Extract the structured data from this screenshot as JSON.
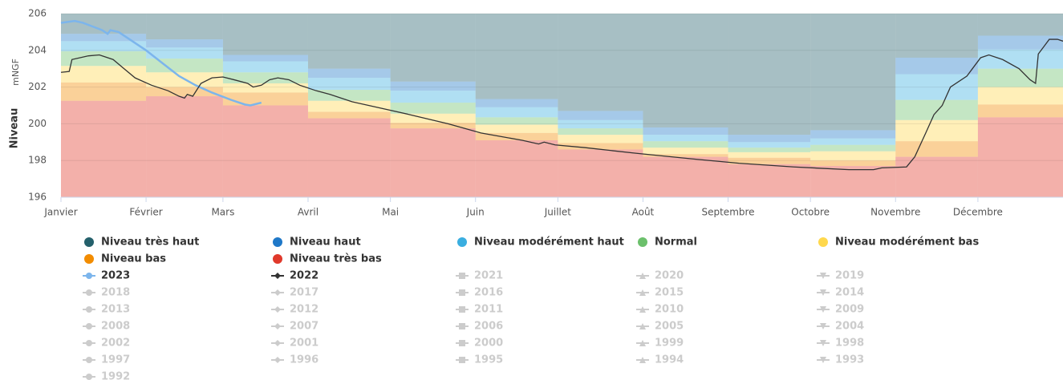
{
  "chart_data": {
    "type": "line",
    "y_label": "Niveau",
    "y_unit": "mNGF",
    "xlim": [
      0,
      365
    ],
    "xticks": [
      {
        "value": 0,
        "label": "Janvier"
      },
      {
        "value": 31,
        "label": "Février"
      },
      {
        "value": 59,
        "label": "Mars"
      },
      {
        "value": 90,
        "label": "Avril"
      },
      {
        "value": 120,
        "label": "Mai"
      },
      {
        "value": 151,
        "label": "Juin"
      },
      {
        "value": 181,
        "label": "Juillet"
      },
      {
        "value": 212,
        "label": "Août"
      },
      {
        "value": 243,
        "label": "Septembre"
      },
      {
        "value": 273,
        "label": "Octobre"
      },
      {
        "value": 304,
        "label": "Novembre"
      },
      {
        "value": 334,
        "label": "Décembre"
      }
    ],
    "ylim": [
      196,
      206
    ],
    "yticks": [
      196,
      198,
      200,
      202,
      204,
      206
    ],
    "grid": true,
    "bands": [
      {
        "name": "Niveau très haut",
        "color": "#24606b",
        "values": [
          204.9,
          204.6,
          203.75,
          203.0,
          202.3,
          201.35,
          200.7,
          199.8,
          199.4,
          199.65,
          203.6,
          204.8
        ]
      },
      {
        "name": "Niveau haut",
        "color": "#1f78c8",
        "values": [
          204.5,
          204.15,
          203.4,
          202.5,
          201.8,
          200.9,
          200.2,
          199.4,
          199.0,
          199.2,
          202.7,
          204.05
        ]
      },
      {
        "name": "Niveau modérément haut",
        "color": "#3aaee0",
        "values": [
          203.95,
          203.55,
          202.8,
          201.85,
          201.15,
          200.35,
          199.75,
          199.05,
          198.7,
          198.85,
          201.3,
          203.0
        ]
      },
      {
        "name": "Normal",
        "color": "#6cc06c",
        "values": [
          203.15,
          202.8,
          202.2,
          201.25,
          200.55,
          199.95,
          199.4,
          198.7,
          198.45,
          198.5,
          200.2,
          202.0
        ]
      },
      {
        "name": "Niveau modérément bas",
        "color": "#ffd84d",
        "values": [
          202.25,
          202.0,
          201.7,
          200.65,
          200.05,
          199.5,
          198.95,
          198.35,
          198.15,
          198.0,
          199.05,
          201.05
        ]
      },
      {
        "name": "Niveau bas",
        "color": "#f28c00",
        "values": [
          201.25,
          201.5,
          201.0,
          200.3,
          199.75,
          199.1,
          198.6,
          198.2,
          197.8,
          197.7,
          198.2,
          200.35
        ]
      },
      {
        "name": "Niveau très bas",
        "color": "#e0392b",
        "values": [
          196,
          196,
          196,
          196,
          196,
          196,
          196,
          196,
          196,
          196,
          196,
          196
        ]
      }
    ],
    "series": [
      {
        "name": "2023",
        "color": "#7cb5ec",
        "x": [
          0,
          5,
          8,
          15,
          17,
          18,
          21,
          25,
          31,
          37,
          43,
          49,
          55,
          62,
          67,
          69,
          73
        ],
        "values": [
          205.5,
          205.6,
          205.5,
          205.1,
          204.9,
          205.1,
          205.0,
          204.6,
          204.0,
          203.3,
          202.6,
          202.1,
          201.7,
          201.3,
          201.05,
          201.0,
          201.15
        ]
      },
      {
        "name": "2022",
        "color": "#333333",
        "x": [
          0,
          3,
          4,
          10,
          14,
          19,
          23,
          27,
          33,
          39,
          43,
          45,
          46,
          48,
          51,
          55,
          59,
          63,
          68,
          70,
          73,
          76,
          79,
          83,
          87,
          93,
          98,
          106,
          115,
          127,
          141,
          153,
          168,
          174,
          176,
          180,
          191,
          209,
          229,
          247,
          267,
          287,
          296,
          299,
          308,
          311,
          315,
          318,
          321,
          324,
          330,
          332,
          335,
          338,
          343,
          349,
          353,
          355,
          356,
          358,
          360,
          363,
          365
        ],
        "values": [
          202.8,
          202.85,
          203.5,
          203.7,
          203.75,
          203.5,
          203.0,
          202.5,
          202.1,
          201.8,
          201.5,
          201.4,
          201.6,
          201.5,
          202.2,
          202.5,
          202.55,
          202.4,
          202.2,
          202.0,
          202.1,
          202.4,
          202.5,
          202.4,
          202.1,
          201.8,
          201.6,
          201.2,
          200.9,
          200.5,
          200.0,
          199.5,
          199.1,
          198.9,
          199.0,
          198.85,
          198.7,
          198.4,
          198.1,
          197.85,
          197.65,
          197.5,
          197.5,
          197.6,
          197.65,
          198.2,
          199.5,
          200.5,
          201.0,
          202.0,
          202.6,
          203.0,
          203.6,
          203.75,
          203.5,
          203.0,
          202.4,
          202.2,
          203.8,
          204.2,
          204.6,
          204.6,
          204.5
        ]
      }
    ],
    "inactive_series": [
      "2021",
      "2020",
      "2019",
      "2018",
      "2017",
      "2016",
      "2015",
      "2014",
      "2013",
      "2012",
      "2011",
      "2010",
      "2009",
      "2008",
      "2007",
      "2006",
      "2005",
      "2004",
      "2002",
      "2001",
      "2000",
      "1999",
      "1998",
      "1997",
      "1996",
      "1995",
      "1994",
      "1993",
      "1992"
    ]
  }
}
